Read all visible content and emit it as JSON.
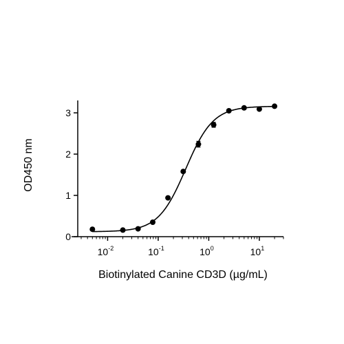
{
  "chart_data": {
    "type": "scatter",
    "xlabel": "Biotinylated Canine CD3D (µg/mL)",
    "ylabel": "OD450 nm",
    "xscale": "log",
    "xlim": [
      0.003,
      30
    ],
    "ylim": [
      0,
      3.3
    ],
    "grid": false,
    "legend": "none",
    "x_ticks": [
      {
        "base": "10",
        "exp": "-2",
        "value": 0.01
      },
      {
        "base": "10",
        "exp": "-1",
        "value": 0.1
      },
      {
        "base": "10",
        "exp": "0",
        "value": 1
      },
      {
        "base": "10",
        "exp": "1",
        "value": 10
      }
    ],
    "y_ticks": [
      "0",
      "1",
      "2",
      "3"
    ],
    "points": [
      {
        "x": 0.005,
        "y": 0.18,
        "err": 0.01
      },
      {
        "x": 0.02,
        "y": 0.16,
        "err": 0.01
      },
      {
        "x": 0.04,
        "y": 0.19,
        "err": 0.01
      },
      {
        "x": 0.078,
        "y": 0.35,
        "err": 0.02
      },
      {
        "x": 0.156,
        "y": 0.94,
        "err": 0.02
      },
      {
        "x": 0.3125,
        "y": 1.58,
        "err": 0.03
      },
      {
        "x": 0.625,
        "y": 2.24,
        "err": 0.07
      },
      {
        "x": 1.25,
        "y": 2.71,
        "err": 0.06
      },
      {
        "x": 2.5,
        "y": 3.05,
        "err": 0.02
      },
      {
        "x": 5,
        "y": 3.12,
        "err": 0.02
      },
      {
        "x": 10,
        "y": 3.09,
        "err": 0.02
      },
      {
        "x": 20,
        "y": 3.16,
        "err": 0.02
      }
    ],
    "fit_curve": {
      "model": "4PL",
      "bottom": 0.12,
      "top": 3.16,
      "ec50": 0.35,
      "hill": 1.6
    },
    "colors": {
      "points": "#000000",
      "curve": "#000000",
      "axes": "#000000"
    }
  }
}
